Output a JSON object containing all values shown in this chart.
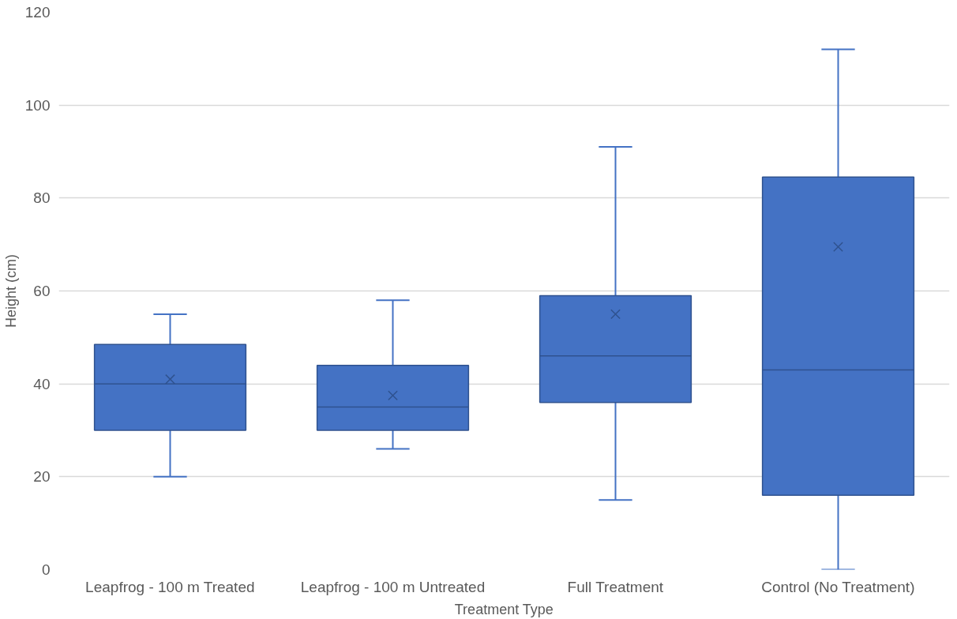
{
  "chart_data": {
    "type": "box",
    "xlabel": "Treatment Type",
    "ylabel": "Height (cm)",
    "categories": [
      "Leapfrog - 100 m Treated",
      "Leapfrog - 100 m Untreated",
      "Full Treatment",
      "Control (No Treatment)"
    ],
    "color": "#4472c4",
    "boxes": [
      {
        "low": 20,
        "q1": 30,
        "median": 40,
        "q3": 48.5,
        "high": 55,
        "mean": 41
      },
      {
        "low": 26,
        "q1": 30,
        "median": 35,
        "q3": 44,
        "high": 58,
        "mean": 37.5
      },
      {
        "low": 15,
        "q1": 36,
        "median": 46,
        "q3": 59,
        "high": 91,
        "mean": 55
      },
      {
        "low": 0,
        "q1": 16,
        "median": 43,
        "q3": 84.5,
        "high": 112,
        "mean": 69.5
      }
    ],
    "ylim": [
      0,
      120
    ],
    "yticks": [
      0,
      20,
      40,
      60,
      80,
      100,
      120
    ],
    "grid": "y"
  }
}
